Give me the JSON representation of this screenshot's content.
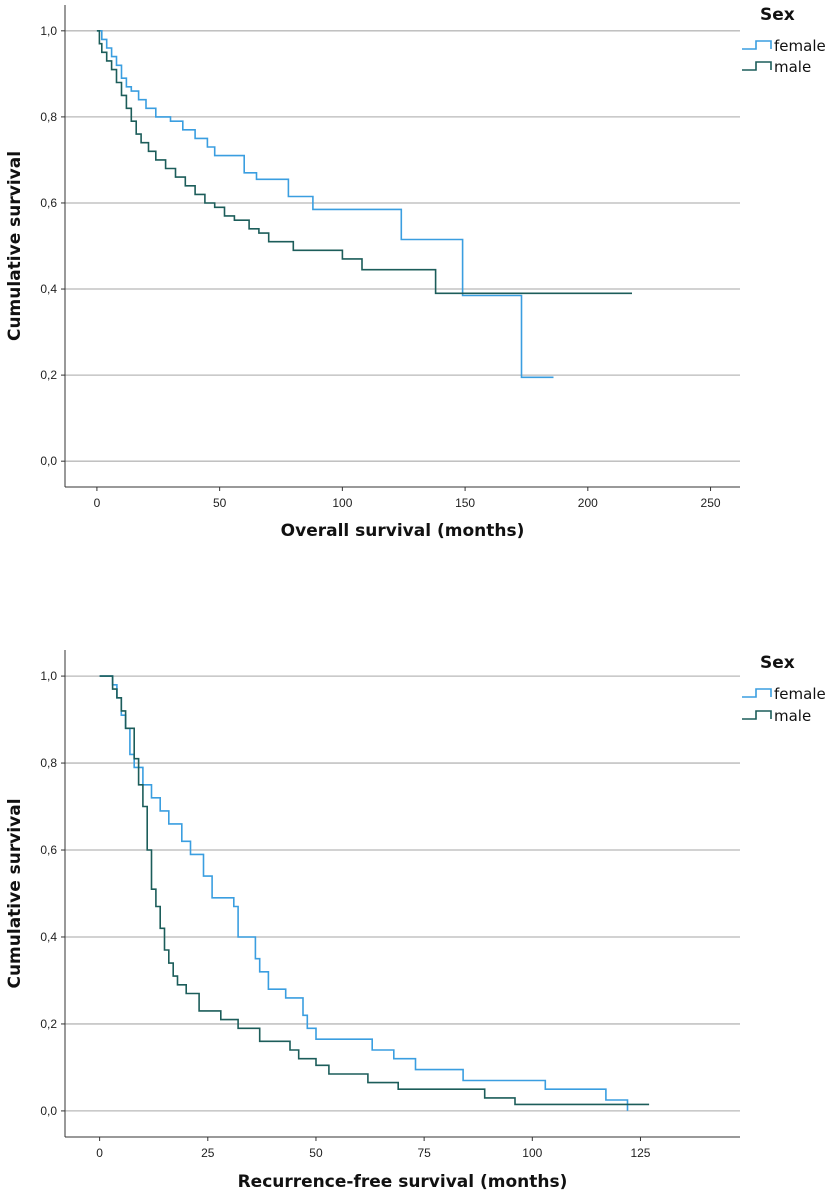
{
  "chart_data": [
    {
      "type": "line",
      "subtype": "kaplan-meier step",
      "xlabel": "Overall survival (months)",
      "ylabel": "Cumulative survival",
      "xlim": [
        -13,
        262
      ],
      "ylim": [
        -0.06,
        1.06
      ],
      "xticks": [
        0,
        50,
        100,
        150,
        200,
        250
      ],
      "yticks": [
        0.0,
        0.2,
        0.4,
        0.6,
        0.8,
        1.0
      ],
      "ytick_labels": [
        "0,0",
        "0,2",
        "0,4",
        "0,6",
        "0,8",
        "1,0"
      ],
      "grid": "horizontal",
      "legend": {
        "title": "Sex",
        "position": "top-right"
      },
      "series": [
        {
          "name": "female",
          "color": "#3a9ee0",
          "points": [
            [
              0,
              1.0
            ],
            [
              2,
              0.98
            ],
            [
              4,
              0.96
            ],
            [
              6,
              0.94
            ],
            [
              8,
              0.92
            ],
            [
              10,
              0.89
            ],
            [
              12,
              0.87
            ],
            [
              14,
              0.86
            ],
            [
              17,
              0.84
            ],
            [
              20,
              0.82
            ],
            [
              24,
              0.8
            ],
            [
              30,
              0.79
            ],
            [
              35,
              0.77
            ],
            [
              40,
              0.75
            ],
            [
              45,
              0.73
            ],
            [
              48,
              0.71
            ],
            [
              60,
              0.67
            ],
            [
              65,
              0.655
            ],
            [
              78,
              0.615
            ],
            [
              88,
              0.585
            ],
            [
              124,
              0.515
            ],
            [
              149,
              0.385
            ],
            [
              173,
              0.195
            ],
            [
              186,
              0.195
            ]
          ]
        },
        {
          "name": "male",
          "color": "#1c5d5a",
          "points": [
            [
              0,
              1.0
            ],
            [
              1,
              0.97
            ],
            [
              2,
              0.95
            ],
            [
              4,
              0.93
            ],
            [
              6,
              0.91
            ],
            [
              8,
              0.88
            ],
            [
              10,
              0.85
            ],
            [
              12,
              0.82
            ],
            [
              14,
              0.79
            ],
            [
              16,
              0.76
            ],
            [
              18,
              0.74
            ],
            [
              21,
              0.72
            ],
            [
              24,
              0.7
            ],
            [
              28,
              0.68
            ],
            [
              32,
              0.66
            ],
            [
              36,
              0.64
            ],
            [
              40,
              0.62
            ],
            [
              44,
              0.6
            ],
            [
              48,
              0.59
            ],
            [
              52,
              0.57
            ],
            [
              56,
              0.56
            ],
            [
              62,
              0.54
            ],
            [
              66,
              0.53
            ],
            [
              70,
              0.51
            ],
            [
              80,
              0.49
            ],
            [
              100,
              0.47
            ],
            [
              108,
              0.445
            ],
            [
              138,
              0.39
            ],
            [
              218,
              0.39
            ]
          ]
        }
      ]
    },
    {
      "type": "line",
      "subtype": "kaplan-meier step",
      "xlabel": "Recurrence-free survival (months)",
      "ylabel": "Cumulative survival",
      "xlim": [
        -8,
        148
      ],
      "ylim": [
        -0.06,
        1.06
      ],
      "xticks": [
        0,
        25,
        50,
        75,
        100,
        125
      ],
      "yticks": [
        0.0,
        0.2,
        0.4,
        0.6,
        0.8,
        1.0
      ],
      "ytick_labels": [
        "0,0",
        "0,2",
        "0,4",
        "0,6",
        "0,8",
        "1,0"
      ],
      "grid": "horizontal",
      "legend": {
        "title": "Sex",
        "position": "top-right"
      },
      "series": [
        {
          "name": "female",
          "color": "#3a9ee0",
          "points": [
            [
              0,
              1.0
            ],
            [
              3,
              0.98
            ],
            [
              4,
              0.95
            ],
            [
              5,
              0.91
            ],
            [
              6,
              0.88
            ],
            [
              7,
              0.82
            ],
            [
              8,
              0.79
            ],
            [
              10,
              0.75
            ],
            [
              12,
              0.72
            ],
            [
              14,
              0.69
            ],
            [
              16,
              0.66
            ],
            [
              19,
              0.62
            ],
            [
              21,
              0.59
            ],
            [
              24,
              0.54
            ],
            [
              26,
              0.49
            ],
            [
              31,
              0.47
            ],
            [
              32,
              0.4
            ],
            [
              36,
              0.35
            ],
            [
              37,
              0.32
            ],
            [
              39,
              0.28
            ],
            [
              43,
              0.26
            ],
            [
              47,
              0.22
            ],
            [
              48,
              0.19
            ],
            [
              50,
              0.165
            ],
            [
              63,
              0.14
            ],
            [
              68,
              0.12
            ],
            [
              73,
              0.095
            ],
            [
              84,
              0.07
            ],
            [
              103,
              0.05
            ],
            [
              117,
              0.025
            ],
            [
              122,
              0.0
            ]
          ]
        },
        {
          "name": "male",
          "color": "#1c5d5a",
          "points": [
            [
              0,
              1.0
            ],
            [
              3,
              0.97
            ],
            [
              4,
              0.95
            ],
            [
              5,
              0.92
            ],
            [
              6,
              0.88
            ],
            [
              8,
              0.81
            ],
            [
              9,
              0.75
            ],
            [
              10,
              0.7
            ],
            [
              11,
              0.6
            ],
            [
              12,
              0.51
            ],
            [
              13,
              0.47
            ],
            [
              14,
              0.42
            ],
            [
              15,
              0.37
            ],
            [
              16,
              0.34
            ],
            [
              17,
              0.31
            ],
            [
              18,
              0.29
            ],
            [
              20,
              0.27
            ],
            [
              23,
              0.23
            ],
            [
              28,
              0.21
            ],
            [
              32,
              0.19
            ],
            [
              37,
              0.16
            ],
            [
              44,
              0.14
            ],
            [
              46,
              0.12
            ],
            [
              50,
              0.105
            ],
            [
              53,
              0.085
            ],
            [
              62,
              0.065
            ],
            [
              69,
              0.05
            ],
            [
              89,
              0.03
            ],
            [
              96,
              0.015
            ],
            [
              127,
              0.015
            ]
          ]
        }
      ]
    }
  ]
}
